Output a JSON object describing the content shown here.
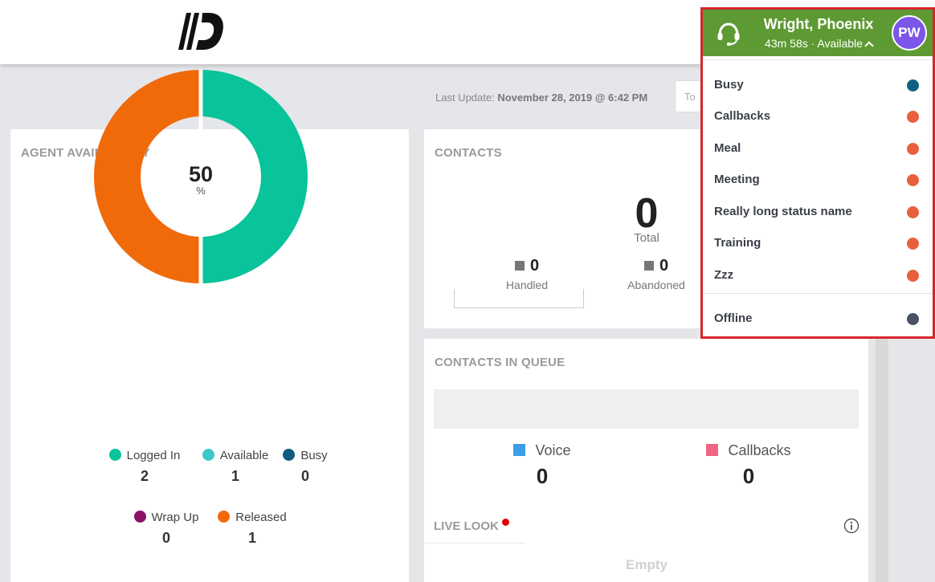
{
  "header": {
    "logo_icon": "brand-logo-icon"
  },
  "last_update": {
    "label": "Last Update:",
    "value": "November 28, 2019 @ 6:42 PM"
  },
  "toolbox": {
    "text": "To"
  },
  "agent_availability": {
    "title": "AGENT AVAILABILITY",
    "donut": {
      "value": "50",
      "unit": "%",
      "available_fraction": 0.5,
      "released_fraction": 0.5
    },
    "legend": [
      {
        "label": "Logged In",
        "value": "2",
        "color": "#09c39a"
      },
      {
        "label": "Available",
        "value": "1",
        "color": "#3cc8c9"
      },
      {
        "label": "Busy",
        "value": "0",
        "color": "#0f5b82"
      },
      {
        "label": "Wrap Up",
        "value": "0",
        "color": "#8b1268"
      },
      {
        "label": "Released",
        "value": "1",
        "color": "#f06a0a"
      }
    ]
  },
  "contacts": {
    "title": "CONTACTS",
    "total_value": "0",
    "total_label": "Total",
    "handled_value": "0",
    "handled_label": "Handled",
    "abandoned_value": "0",
    "abandoned_label": "Abandoned"
  },
  "contacts_in_queue": {
    "title": "CONTACTS IN QUEUE",
    "voice_label": "Voice",
    "voice_value": "0",
    "voice_color": "#3c9ee5",
    "callbacks_label": "Callbacks",
    "callbacks_value": "0",
    "callbacks_color": "#f06583"
  },
  "live_look": {
    "title": "LIVE LOOK",
    "empty_text": "Empty"
  },
  "user_menu": {
    "name": "Wright, Phoenix",
    "status_text": "43m 58s · Available",
    "avatar_initials": "PW",
    "header_color": "#5e9a33",
    "avatar_color": "#7b56e8",
    "statuses": [
      {
        "label": "Busy",
        "color": "#0f6083"
      },
      {
        "label": "Callbacks",
        "color": "#e8603c"
      },
      {
        "label": "Meal",
        "color": "#e8603c"
      },
      {
        "label": "Meeting",
        "color": "#e8603c"
      },
      {
        "label": "Really long status name",
        "color": "#e8603c"
      },
      {
        "label": "Training",
        "color": "#e8603c"
      },
      {
        "label": "Zzz",
        "color": "#e8603c"
      }
    ],
    "offline": {
      "label": "Offline",
      "color": "#4a5266"
    }
  }
}
